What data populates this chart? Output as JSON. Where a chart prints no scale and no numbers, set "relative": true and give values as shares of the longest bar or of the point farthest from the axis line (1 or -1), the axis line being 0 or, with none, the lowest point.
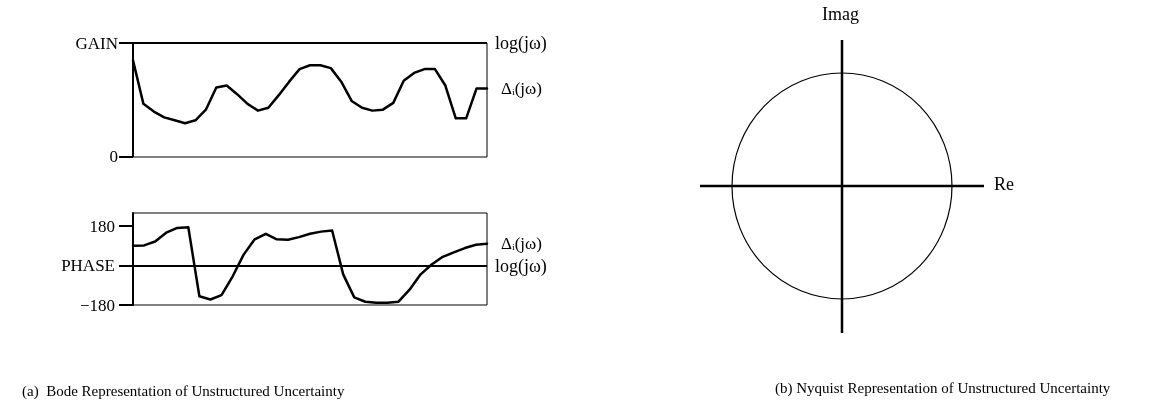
{
  "chart_data": [
    {
      "type": "line",
      "categories": [
        null,
        null,
        null,
        null,
        null,
        null,
        null,
        null,
        null,
        null,
        null,
        null,
        null,
        null,
        null,
        null,
        null,
        null,
        null,
        null,
        null,
        null,
        null,
        null,
        null,
        null,
        null,
        null,
        null,
        null,
        null,
        null,
        null,
        null,
        null
      ],
      "relative": true,
      "ylabel": "GAIN",
      "annotations": [
        "0"
      ],
      "tick_labels": false,
      "marker": "none",
      "line_style": "solid",
      "ref_lines": [
        {
          "axis": "y",
          "value": 1.18,
          "label": "log(jω)"
        }
      ],
      "series": [
        {
          "name": "Δᵢ(jω)",
          "color": "#000000",
          "values": [
            1,
            0.55,
            0.47,
            0.41,
            0.38,
            0.35,
            0.38,
            0.49,
            0.72,
            0.74,
            0.65,
            0.55,
            0.48,
            0.51,
            0.64,
            0.78,
            0.91,
            0.95,
            0.95,
            0.92,
            0.78,
            0.58,
            0.51,
            0.48,
            0.49,
            0.56,
            0.79,
            0.87,
            0.91,
            0.91,
            0.74,
            0.4,
            0.4,
            0.71,
            0.71
          ]
        }
      ]
    },
    {
      "type": "line",
      "categories": [
        null,
        null,
        null,
        null,
        null,
        null,
        null,
        null,
        null,
        null,
        null,
        null,
        null,
        null,
        null,
        null,
        null,
        null,
        null,
        null,
        null,
        null,
        null,
        null,
        null,
        null,
        null,
        null,
        null,
        null,
        null,
        null,
        null
      ],
      "ylim": [
        -180,
        240
      ],
      "yticks": [
        {
          "value": -180,
          "label": "−180"
        },
        {
          "value": 0,
          "label": "PHASE"
        },
        180
      ],
      "tick_labels": "y",
      "marker": "none",
      "line_style": "solid",
      "ref_lines": [
        {
          "axis": "y",
          "value": 0,
          "label": "log(jω)"
        }
      ],
      "annotations": [
        "(a)  Bode Representation of Unstructured Uncertainty"
      ],
      "series": [
        {
          "name": "Δᵢ(jω)",
          "color": "#000000",
          "values": [
            90,
            92,
            110,
            150,
            172,
            175,
            -140,
            -155,
            -135,
            -50,
            50,
            120,
            145,
            120,
            118,
            130,
            145,
            155,
            160,
            -40,
            -145,
            -165,
            -170,
            -170,
            -165,
            -110,
            -40,
            5,
            40,
            60,
            80,
            95,
            100
          ]
        }
      ]
    },
    {
      "type": "other",
      "annotations": [
        "Imag",
        "Re",
        "(b)  Nyquist Representation of Unstructured Uncertainty"
      ]
    }
  ]
}
